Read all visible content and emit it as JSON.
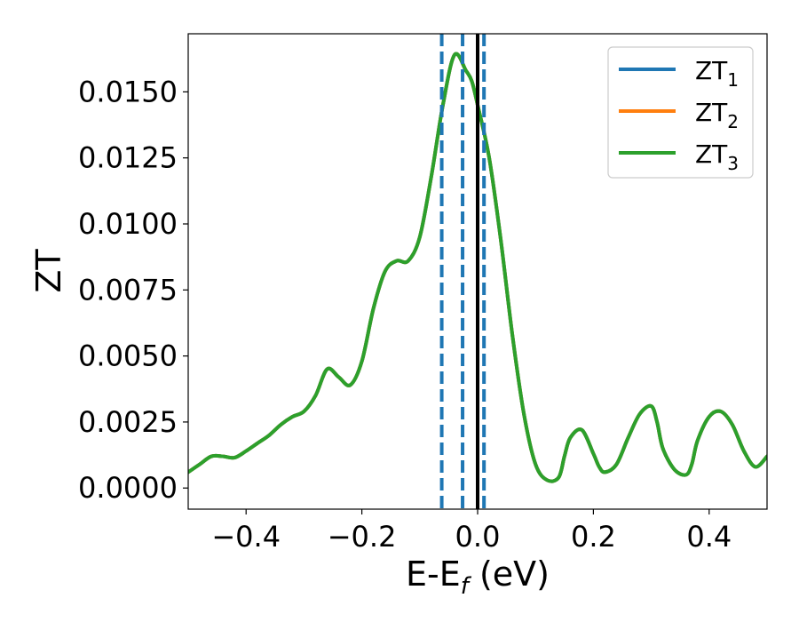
{
  "chart_data": {
    "type": "line",
    "title": "",
    "xlabel": {
      "main": "E-E",
      "sub": "f",
      "suffix": " (eV)"
    },
    "ylabel": "ZT",
    "xlim": [
      -0.5,
      0.5
    ],
    "ylim": [
      -0.0008,
      0.0172
    ],
    "x_ticks": [
      -0.4,
      -0.2,
      0.0,
      0.2,
      0.4
    ],
    "x_tick_labels": [
      "−0.4",
      "−0.2",
      "0.0",
      "0.2",
      "0.4"
    ],
    "y_ticks": [
      0.0,
      0.0025,
      0.005,
      0.0075,
      0.01,
      0.0125,
      0.015
    ],
    "y_tick_labels": [
      "0.0000",
      "0.0025",
      "0.0050",
      "0.0075",
      "0.0100",
      "0.0125",
      "0.0150"
    ],
    "grid": false,
    "legend_position": "top-right",
    "colors": {
      "series_1": "#1f77b4",
      "series_2": "#ff7f0e",
      "series_3": "#2ca02c",
      "fermi_line": "#000000",
      "dashed_lines": "#1f77b4"
    },
    "vertical_lines": [
      {
        "x": 0.0,
        "style": "solid",
        "color": "#000000"
      },
      {
        "x": -0.062,
        "style": "dashed",
        "color": "#1f77b4"
      },
      {
        "x": -0.026,
        "style": "dashed",
        "color": "#1f77b4"
      },
      {
        "x": 0.011,
        "style": "dashed",
        "color": "#1f77b4"
      }
    ],
    "x": [
      -0.5,
      -0.48,
      -0.46,
      -0.44,
      -0.42,
      -0.4,
      -0.38,
      -0.36,
      -0.34,
      -0.32,
      -0.3,
      -0.28,
      -0.26,
      -0.24,
      -0.22,
      -0.2,
      -0.18,
      -0.16,
      -0.14,
      -0.12,
      -0.1,
      -0.08,
      -0.06,
      -0.04,
      -0.02,
      -0.01,
      0.0,
      0.02,
      0.04,
      0.06,
      0.08,
      0.1,
      0.12,
      0.14,
      0.15,
      0.16,
      0.18,
      0.2,
      0.21,
      0.22,
      0.24,
      0.26,
      0.28,
      0.3,
      0.31,
      0.32,
      0.34,
      0.36,
      0.37,
      0.38,
      0.4,
      0.42,
      0.44,
      0.46,
      0.48,
      0.5
    ],
    "series": [
      {
        "name": "ZT_1",
        "values": [
          0.0006,
          0.0009,
          0.0012,
          0.0012,
          0.00115,
          0.0014,
          0.0017,
          0.002,
          0.0024,
          0.0027,
          0.0029,
          0.0035,
          0.0045,
          0.0042,
          0.0039,
          0.0048,
          0.0068,
          0.0082,
          0.0086,
          0.0086,
          0.0095,
          0.0118,
          0.0145,
          0.0164,
          0.0158,
          0.0154,
          0.0145,
          0.0125,
          0.0094,
          0.0058,
          0.0028,
          0.0009,
          0.0003,
          0.0004,
          0.0012,
          0.0019,
          0.0022,
          0.0013,
          0.0008,
          0.0006,
          0.0009,
          0.0019,
          0.0028,
          0.0031,
          0.0025,
          0.0015,
          0.0007,
          0.0005,
          0.0009,
          0.0018,
          0.0027,
          0.0029,
          0.0024,
          0.0014,
          0.0008,
          0.0012
        ]
      },
      {
        "name": "ZT_2",
        "values": [
          0.0006,
          0.0009,
          0.0012,
          0.0012,
          0.00115,
          0.0014,
          0.0017,
          0.002,
          0.0024,
          0.0027,
          0.0029,
          0.0035,
          0.0045,
          0.0042,
          0.0039,
          0.0048,
          0.0068,
          0.0082,
          0.0086,
          0.0086,
          0.0095,
          0.0118,
          0.0145,
          0.0164,
          0.0158,
          0.0154,
          0.0145,
          0.0125,
          0.0094,
          0.0058,
          0.0028,
          0.0009,
          0.0003,
          0.0004,
          0.0012,
          0.0019,
          0.0022,
          0.0013,
          0.0008,
          0.0006,
          0.0009,
          0.0019,
          0.0028,
          0.0031,
          0.0025,
          0.0015,
          0.0007,
          0.0005,
          0.0009,
          0.0018,
          0.0027,
          0.0029,
          0.0024,
          0.0014,
          0.0008,
          0.0012
        ]
      },
      {
        "name": "ZT_3",
        "values": [
          0.0006,
          0.0009,
          0.0012,
          0.0012,
          0.00115,
          0.0014,
          0.0017,
          0.002,
          0.0024,
          0.0027,
          0.0029,
          0.0035,
          0.0045,
          0.0042,
          0.0039,
          0.0048,
          0.0068,
          0.0082,
          0.0086,
          0.0086,
          0.0095,
          0.0118,
          0.0145,
          0.0164,
          0.0158,
          0.0154,
          0.0145,
          0.0125,
          0.0094,
          0.0058,
          0.0028,
          0.0009,
          0.0003,
          0.0004,
          0.0012,
          0.0019,
          0.0022,
          0.0013,
          0.0008,
          0.0006,
          0.0009,
          0.0019,
          0.0028,
          0.0031,
          0.0025,
          0.0015,
          0.0007,
          0.0005,
          0.0009,
          0.0018,
          0.0027,
          0.0029,
          0.0024,
          0.0014,
          0.0008,
          0.0012
        ]
      }
    ],
    "legend": [
      {
        "main": "ZT",
        "sub": "1",
        "color": "#1f77b4"
      },
      {
        "main": "ZT",
        "sub": "2",
        "color": "#ff7f0e"
      },
      {
        "main": "ZT",
        "sub": "3",
        "color": "#2ca02c"
      }
    ]
  }
}
